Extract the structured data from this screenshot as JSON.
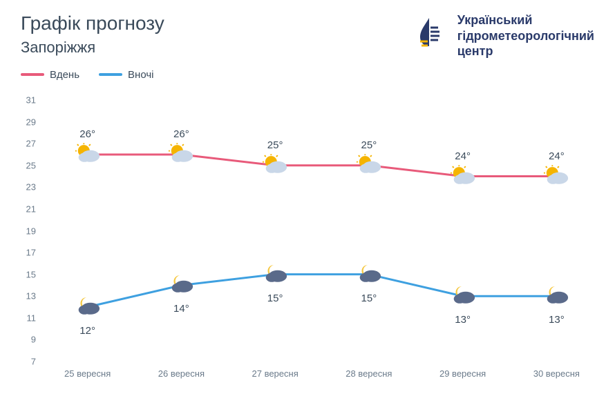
{
  "header": {
    "title": "Графік прогнозу",
    "subtitle": "Запоріжжя",
    "org_line1": "Український",
    "org_line2": "гідрометеорологічний",
    "org_line3": "центр"
  },
  "legend": {
    "day_label": "Вдень",
    "night_label": "Вночі"
  },
  "chart": {
    "type": "line",
    "background_color": "#ffffff",
    "ylim": [
      7,
      31
    ],
    "ytick_step": 2,
    "yticks": [
      7,
      9,
      11,
      13,
      15,
      17,
      19,
      21,
      23,
      25,
      27,
      29,
      31
    ],
    "categories": [
      "25 вересня",
      "26 вересня",
      "27 вересня",
      "28 вересня",
      "29 вересня",
      "30 вересня"
    ],
    "day_series": {
      "color": "#e85a7a",
      "line_width": 3,
      "values": [
        26,
        26,
        25,
        25,
        24,
        24
      ],
      "labels": [
        "26°",
        "26°",
        "25°",
        "25°",
        "24°",
        "24°"
      ],
      "label_offset_y": -30,
      "icon": "sun-cloud"
    },
    "night_series": {
      "color": "#3ea0e0",
      "line_width": 3,
      "values": [
        12,
        14,
        15,
        15,
        13,
        13
      ],
      "labels": [
        "12°",
        "14°",
        "15°",
        "15°",
        "13°",
        "13°"
      ],
      "label_offset_y": 26,
      "icon": "moon-cloud"
    },
    "axis_text_color": "#6a7a8a",
    "label_text_color": "#3a4a5a",
    "label_fontsize": 15,
    "tick_fontsize": 13,
    "icon_colors": {
      "sun": "#f5b400",
      "cloud_day": "#c9d7e8",
      "moon": "#f5c842",
      "cloud_night": "#5a6a8a"
    }
  }
}
